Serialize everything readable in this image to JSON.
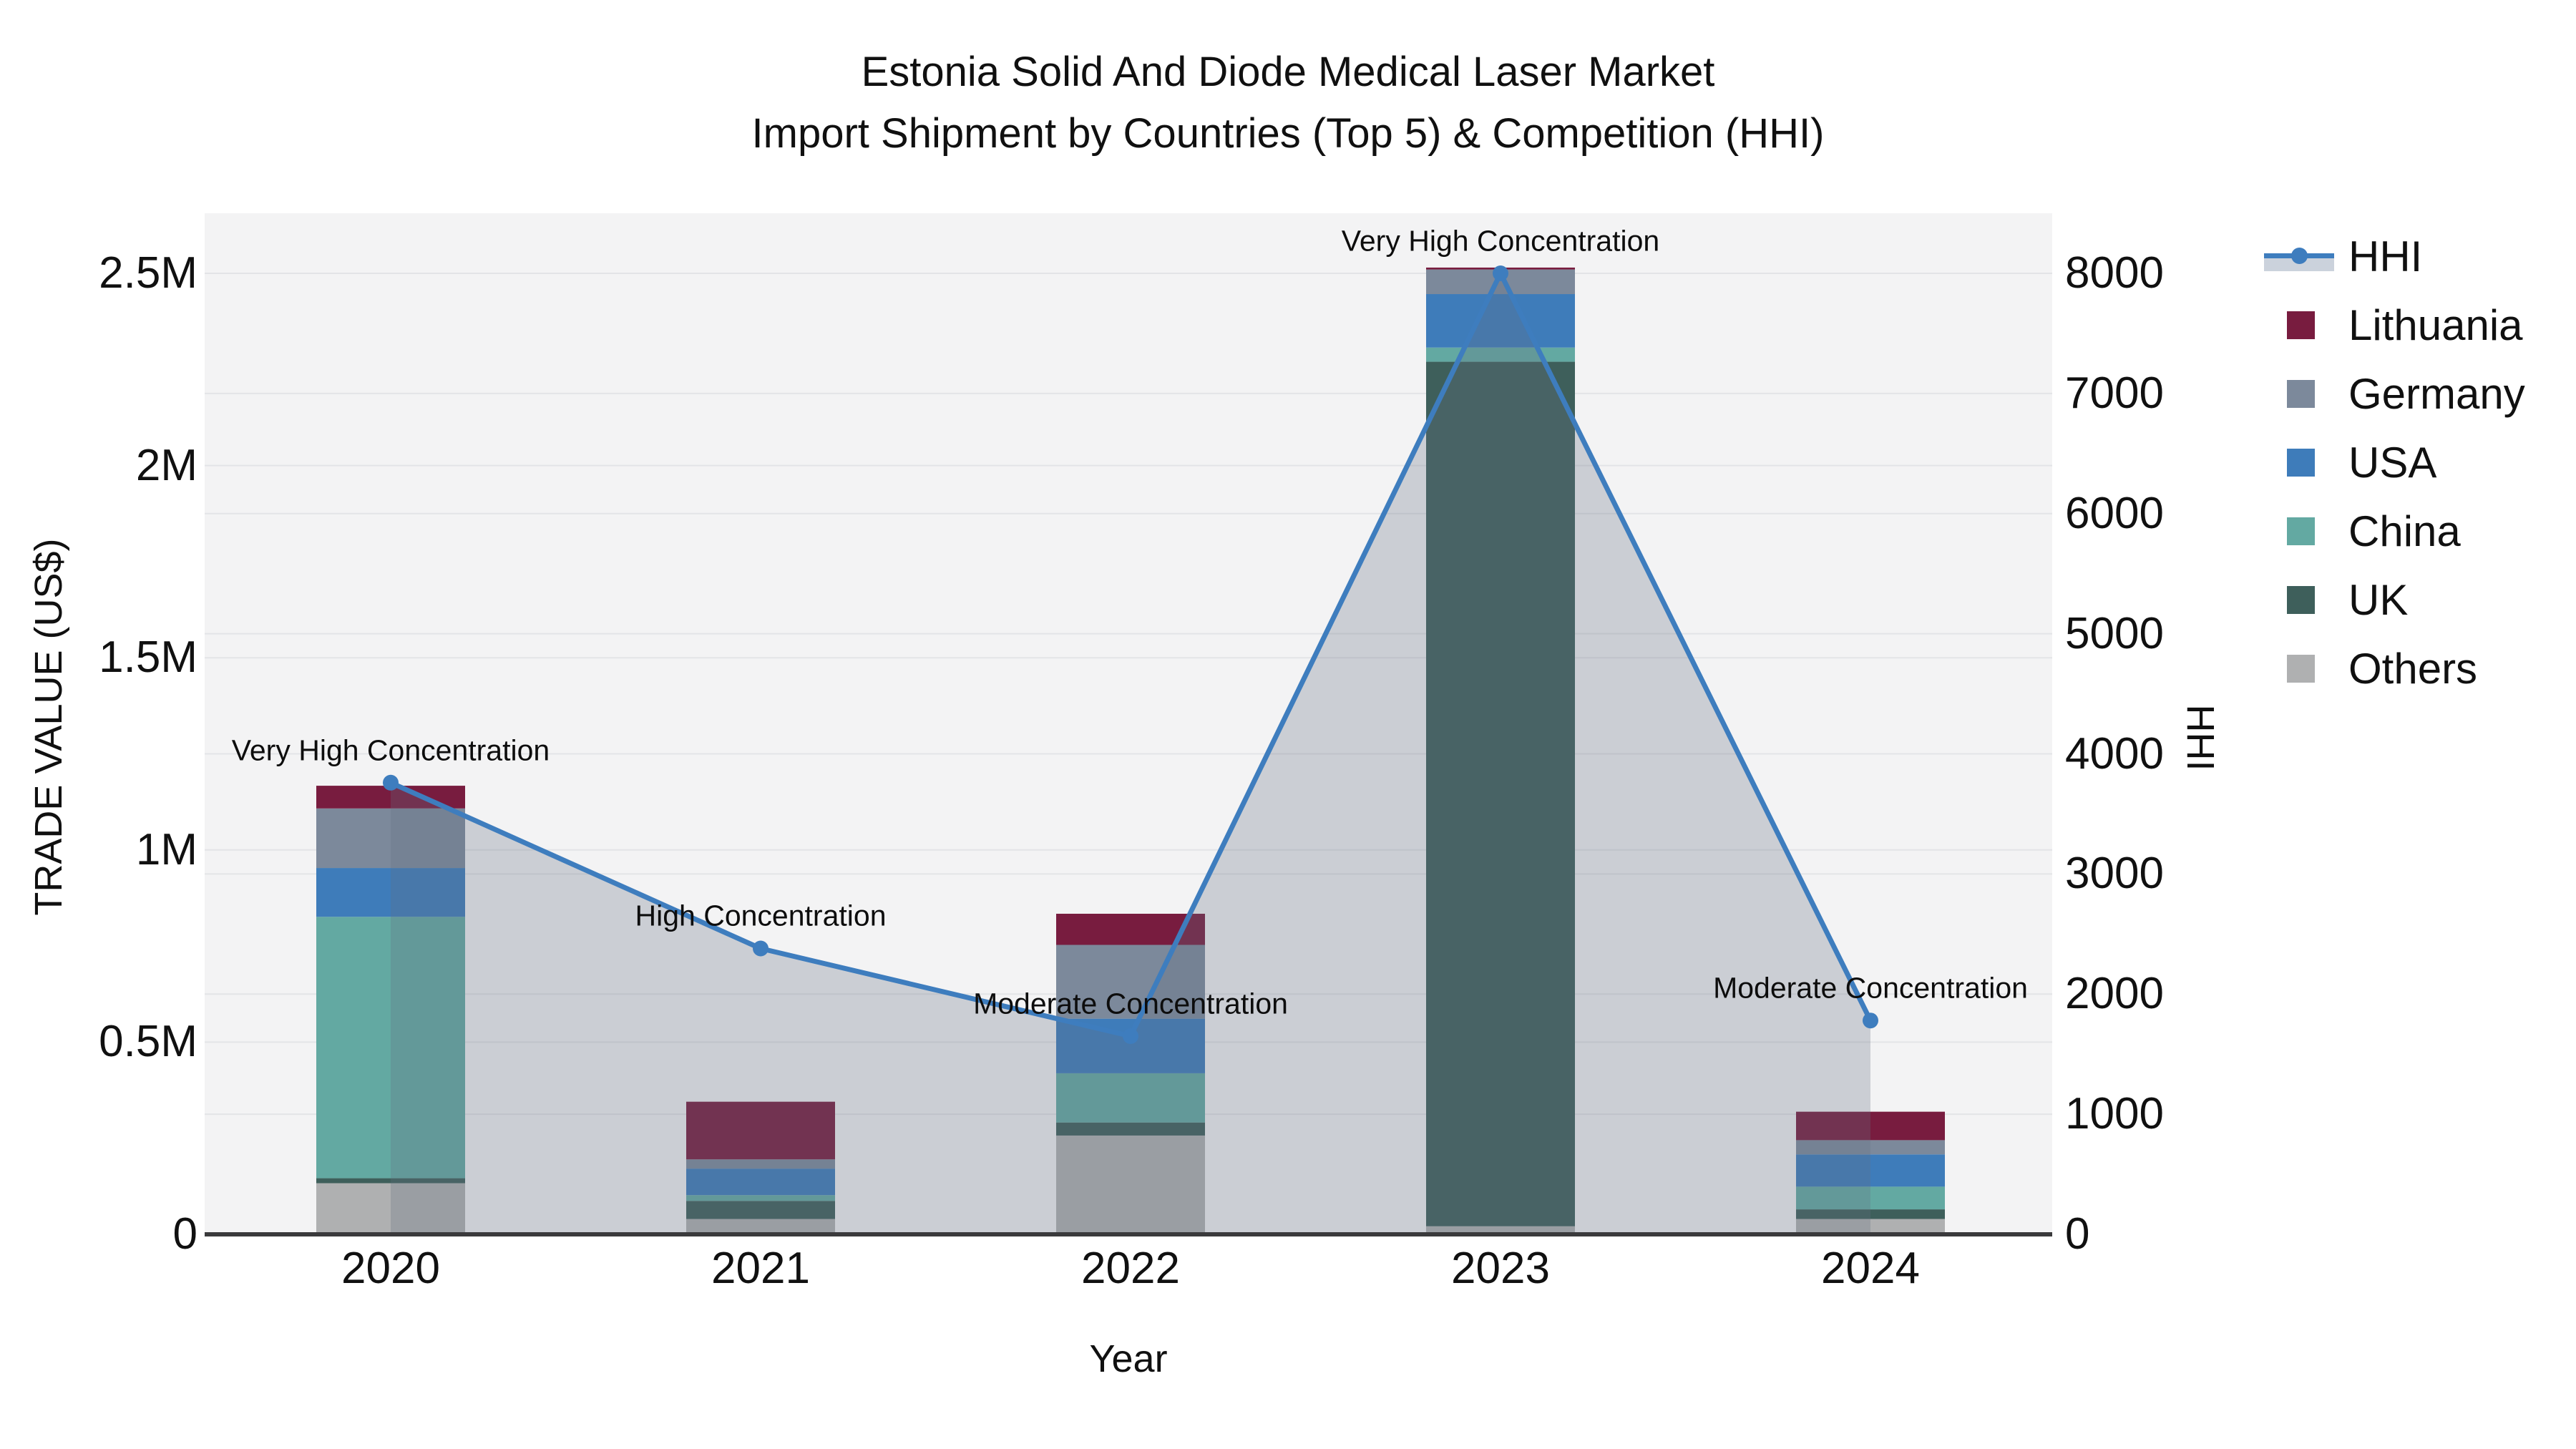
{
  "title": {
    "line1": "Estonia Solid And Diode Medical Laser Market",
    "line2": "Import Shipment by Countries (Top 5) & Competition (HHI)"
  },
  "axes": {
    "x": {
      "title": "Year",
      "tick_labels": [
        "2020",
        "2021",
        "2022",
        "2023",
        "2024"
      ]
    },
    "left": {
      "title": "TRADE VALUE (US$)",
      "tick_labels": [
        "0",
        "0.5M",
        "1M",
        "1.5M",
        "2M",
        "2.5M"
      ],
      "tick_values": [
        0,
        500000,
        1000000,
        1500000,
        2000000,
        2500000
      ]
    },
    "right": {
      "title": "HHI",
      "tick_labels": [
        "0",
        "1000",
        "2000",
        "3000",
        "4000",
        "5000",
        "6000",
        "7000",
        "8000"
      ],
      "tick_values": [
        0,
        1000,
        2000,
        3000,
        4000,
        5000,
        6000,
        7000,
        8000
      ]
    }
  },
  "legend": {
    "items": [
      {
        "label": "HHI",
        "type": "line",
        "color": "#3E7DBE"
      },
      {
        "label": "Lithuania",
        "type": "swatch",
        "color": "#781C3F"
      },
      {
        "label": "Germany",
        "type": "swatch",
        "color": "#7C899B"
      },
      {
        "label": "USA",
        "type": "swatch",
        "color": "#3E7CBA"
      },
      {
        "label": "China",
        "type": "swatch",
        "color": "#63A9A2"
      },
      {
        "label": "UK",
        "type": "swatch",
        "color": "#3E5F5B"
      },
      {
        "label": "Others",
        "type": "swatch",
        "color": "#AFB0B1"
      }
    ]
  },
  "annotations": [
    {
      "year": "2020",
      "text": "Very High Concentration"
    },
    {
      "year": "2021",
      "text": "High Concentration"
    },
    {
      "year": "2022",
      "text": "Moderate Concentration"
    },
    {
      "year": "2023",
      "text": "Very High Concentration"
    },
    {
      "year": "2024",
      "text": "Moderate Concentration"
    }
  ],
  "chart_data": {
    "type": [
      "bar",
      "line"
    ],
    "title": "Estonia Solid And Diode Medical Laser Market Import Shipment by Countries (Top 5) & Competition (HHI)",
    "xlabel": "Year",
    "ylabel": "TRADE VALUE (US$)",
    "ylabel_right": "HHI",
    "categories": [
      2020,
      2021,
      2022,
      2023,
      2024
    ],
    "ylim_left": [
      0,
      2660000
    ],
    "ylim_right": [
      0,
      8500
    ],
    "grid": true,
    "legend_position": "right",
    "bar_mode": "stacked",
    "series": [
      {
        "name": "Others",
        "color": "#AFB0B1",
        "values": [
          133000,
          40000,
          257000,
          21000,
          40000
        ]
      },
      {
        "name": "UK",
        "color": "#3E5F5B",
        "values": [
          13000,
          47000,
          34000,
          2249000,
          25000
        ]
      },
      {
        "name": "China",
        "color": "#63A9A2",
        "values": [
          680000,
          15000,
          128000,
          37000,
          59000
        ]
      },
      {
        "name": "USA",
        "color": "#3E7CBA",
        "values": [
          127000,
          69000,
          142000,
          139000,
          84000
        ]
      },
      {
        "name": "Germany",
        "color": "#7C899B",
        "values": [
          155000,
          24000,
          192000,
          64000,
          37000
        ]
      },
      {
        "name": "Lithuania",
        "color": "#781C3F",
        "values": [
          59000,
          150000,
          81000,
          5000,
          74000
        ]
      }
    ],
    "bar_totals": [
      1167000,
      345000,
      834000,
      2515000,
      319000
    ],
    "hhi": {
      "name": "HHI",
      "line_color": "#3E7DBE",
      "area_fill": "rgba(100,110,130,0.28)",
      "values": [
        3760,
        2380,
        1650,
        8000,
        1780
      ]
    },
    "annotation_texts": [
      "Very High Concentration",
      "High Concentration",
      "Moderate Concentration",
      "Very High Concentration",
      "Moderate Concentration"
    ]
  },
  "colors": {
    "plot_bg": "#F3F3F4",
    "grid": "#E3E4E7",
    "axis_line": "#3A3A3C",
    "text": "#101010"
  }
}
